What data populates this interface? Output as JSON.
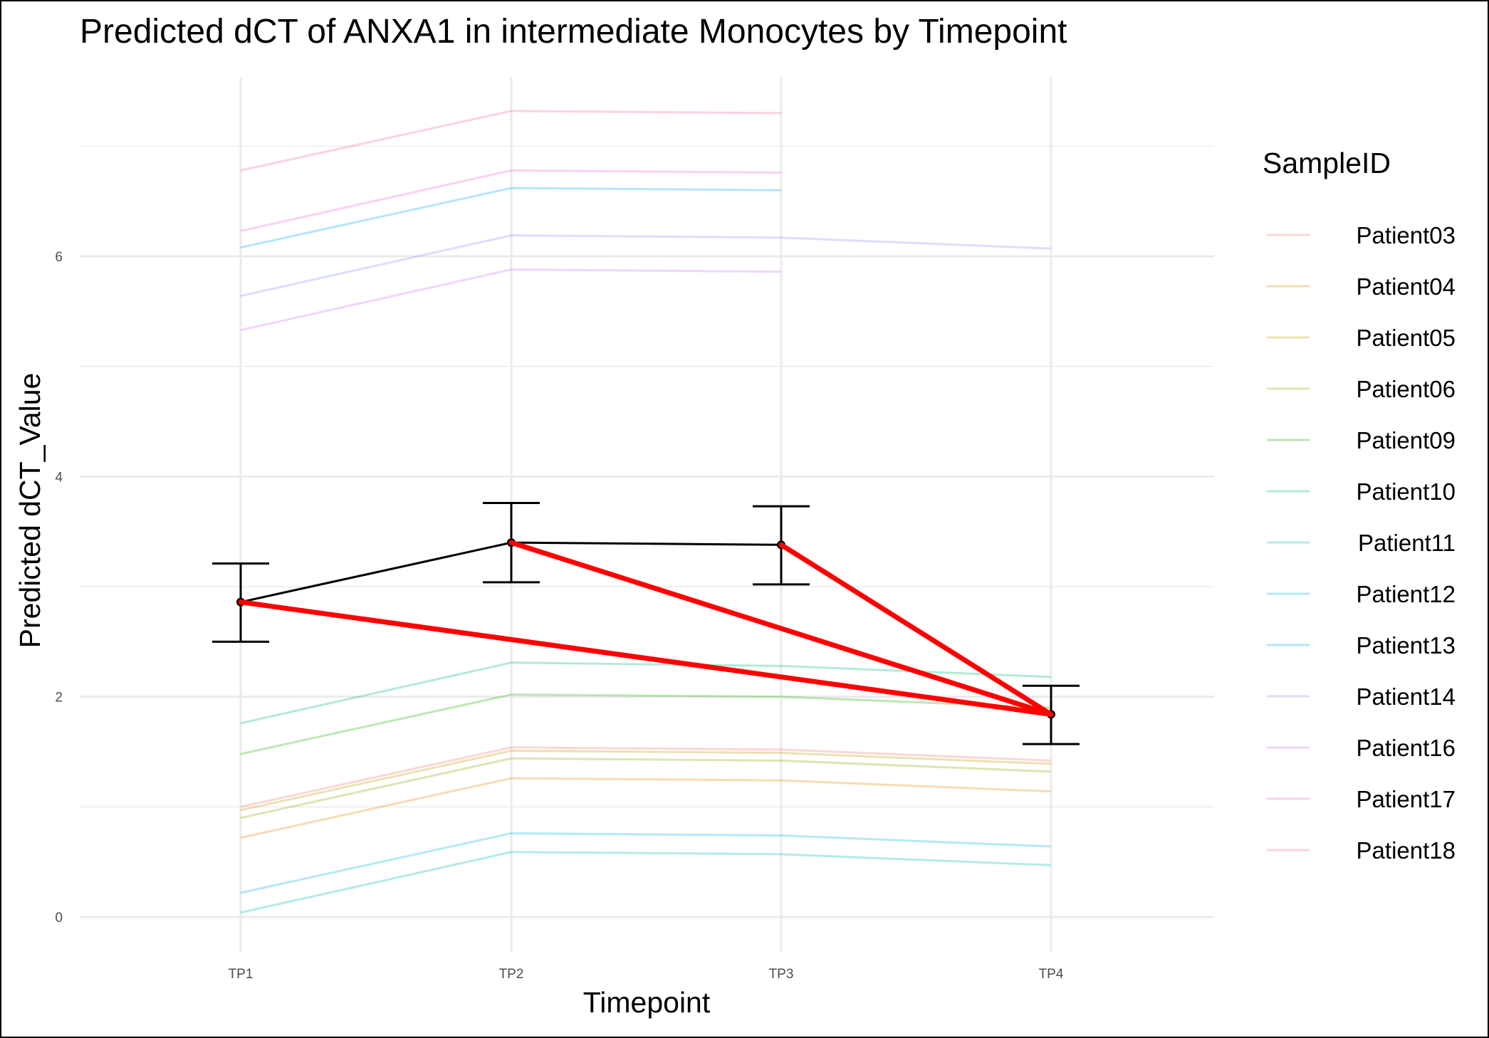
{
  "chart_data": {
    "type": "line",
    "title": "Predicted dCT of  ANXA1 in  intermediate  Monocytes by Timepoint",
    "xlabel": "Timepoint",
    "ylabel": "Predicted dCT_Value",
    "categories": [
      "TP1",
      "TP2",
      "TP3",
      "TP4"
    ],
    "ylim": [
      -0.15,
      7.72
    ],
    "yticks": [
      0,
      2,
      4,
      6
    ],
    "grid": true,
    "legend": {
      "title": "SampleID",
      "position": "right"
    },
    "series": [
      {
        "name": "Patient03",
        "color": "#F8766D",
        "values": [
          1.0,
          1.54,
          1.52,
          1.42
        ]
      },
      {
        "name": "Patient04",
        "color": "#E18A00",
        "values": [
          0.72,
          1.26,
          1.24,
          1.14
        ]
      },
      {
        "name": "Patient05",
        "color": "#BE9C00",
        "values": [
          0.97,
          1.51,
          1.49,
          1.39
        ]
      },
      {
        "name": "Patient06",
        "color": "#8CAB00",
        "values": [
          0.9,
          1.44,
          1.42,
          1.32
        ]
      },
      {
        "name": "Patient09",
        "color": "#24B700",
        "values": [
          1.48,
          2.02,
          2.0,
          1.9
        ]
      },
      {
        "name": "Patient10",
        "color": "#00BE70",
        "values": [
          1.76,
          2.31,
          2.28,
          2.18
        ]
      },
      {
        "name": "Patient11",
        "color": "#00C1AB",
        "values": [
          0.04,
          0.59,
          0.57,
          0.47
        ]
      },
      {
        "name": "Patient12",
        "color": "#00BBDA",
        "values": [
          0.22,
          0.76,
          0.74,
          0.64
        ]
      },
      {
        "name": "Patient13",
        "color": "#00ACFC",
        "values": [
          6.08,
          6.62,
          6.6,
          null
        ]
      },
      {
        "name": "Patient14",
        "color": "#8B93FF",
        "values": [
          5.64,
          6.19,
          6.17,
          6.07
        ]
      },
      {
        "name": "Patient16",
        "color": "#D575FE",
        "values": [
          5.33,
          5.88,
          5.86,
          null
        ]
      },
      {
        "name": "Patient17",
        "color": "#F962DD",
        "values": [
          6.23,
          6.78,
          6.76,
          null
        ]
      },
      {
        "name": "Patient18",
        "color": "#FF65AC",
        "values": [
          6.78,
          7.32,
          7.3,
          null
        ]
      }
    ],
    "mean": {
      "color": "#000000",
      "values": [
        2.86,
        3.4,
        3.38,
        1.84
      ],
      "lower": [
        2.5,
        3.04,
        3.02,
        1.57
      ],
      "upper": [
        3.21,
        3.76,
        3.73,
        2.1
      ]
    },
    "significance_links": {
      "color": "#FF0000",
      "pairs": [
        [
          "TP1",
          "TP4"
        ],
        [
          "TP2",
          "TP4"
        ],
        [
          "TP3",
          "TP4"
        ]
      ]
    }
  }
}
